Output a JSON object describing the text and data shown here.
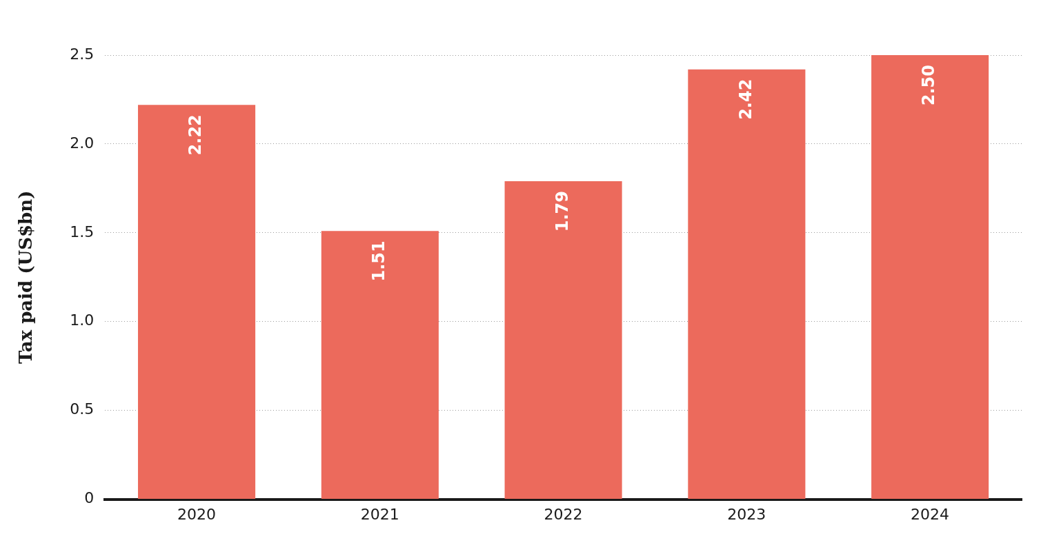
{
  "chart_data": {
    "type": "bar",
    "ylabel": "Tax paid (US$bn)",
    "categories": [
      "2020",
      "2021",
      "2022",
      "2023",
      "2024"
    ],
    "values": [
      2.22,
      1.51,
      1.79,
      2.42,
      2.5
    ],
    "value_labels": [
      "2.22",
      "1.51",
      "1.79",
      "2.42",
      "2.50"
    ],
    "color": "#ec6a5c",
    "ylim": [
      0,
      2.5
    ],
    "yticks": [
      0,
      0.5,
      {
        "value": 1,
        "label": "1.0"
      },
      1.5,
      {
        "value": 2,
        "label": "2.0"
      },
      2.5
    ],
    "grid": "y",
    "legend": false
  }
}
